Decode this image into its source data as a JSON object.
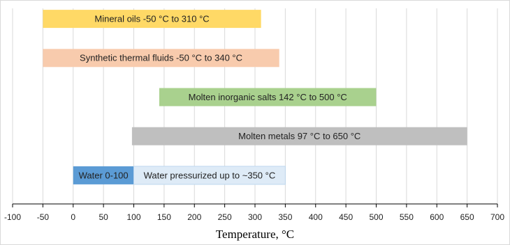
{
  "chart_data": {
    "type": "floating-bar",
    "x_label": "Temperature, °C",
    "xlim": [
      -100,
      700
    ],
    "xticks": [
      -100,
      -50,
      0,
      50,
      100,
      150,
      200,
      250,
      300,
      350,
      400,
      450,
      500,
      550,
      600,
      650,
      700
    ],
    "grid": true,
    "rows": [
      [
        {
          "label": "Mineral oils -50 °C to 310 °C",
          "start": -50,
          "end": 310,
          "color": "#ffd966"
        }
      ],
      [
        {
          "label": "Synthetic thermal fluids -50 °C to 340 °C",
          "start": -50,
          "end": 340,
          "color": "#f8cbad"
        }
      ],
      [
        {
          "label": "Molten inorganic salts 142 °C to 500 °C",
          "start": 142,
          "end": 500,
          "color": "#a9d18e"
        }
      ],
      [
        {
          "label": "Molten metals 97 °C to 650 °C",
          "start": 97,
          "end": 650,
          "color": "#bfbfbf"
        }
      ],
      [
        {
          "label": "Water 0-100",
          "start": 0,
          "end": 100,
          "color": "#5b9bd5"
        },
        {
          "label": "Water pressurized up to ~350 °C",
          "start": 100,
          "end": 350,
          "color": "#deebf7"
        }
      ]
    ]
  }
}
